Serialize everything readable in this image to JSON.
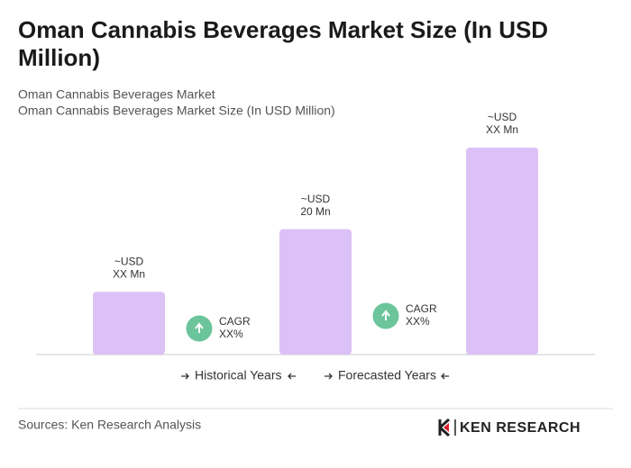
{
  "chart_data": {
    "type": "bar",
    "title": "Oman Cannabis Beverages Market Size (In USD Million)",
    "subtitle": [
      "Oman Cannabis Beverages Market",
      "Oman Cannabis Beverages Market Size (In USD Million)"
    ],
    "categories": [
      null,
      null,
      null
    ],
    "values": [
      10,
      20,
      33
    ],
    "value_labels": [
      [
        "~USD",
        "XX Mn"
      ],
      [
        "~USD",
        "20 Mn"
      ],
      [
        "~USD",
        "XX Mn"
      ]
    ],
    "color": "#dcc1f6",
    "annotations": [
      {
        "label": [
          "CAGR",
          "XX%"
        ],
        "color": "#6cc59a"
      },
      {
        "label": [
          "CAGR",
          "XX%"
        ],
        "color": "#6cc59a"
      }
    ],
    "periods": [
      "Historical Years",
      "Forecasted Years"
    ],
    "source": "Sources: Ken Research Analysis",
    "logo": "KEN RESEARCH"
  }
}
